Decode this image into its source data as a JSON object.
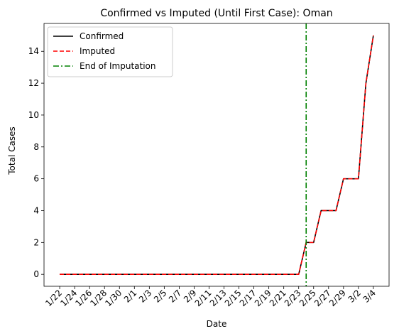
{
  "chart_data": {
    "type": "line",
    "title": "Confirmed vs Imputed (Until First Case): Oman",
    "xlabel": "Date",
    "ylabel": "Total Cases",
    "x": [
      "1/22",
      "1/23",
      "1/24",
      "1/25",
      "1/26",
      "1/27",
      "1/28",
      "1/29",
      "1/30",
      "1/31",
      "2/1",
      "2/2",
      "2/3",
      "2/4",
      "2/5",
      "2/6",
      "2/7",
      "2/8",
      "2/9",
      "2/10",
      "2/11",
      "2/12",
      "2/13",
      "2/14",
      "2/15",
      "2/16",
      "2/17",
      "2/18",
      "2/19",
      "2/20",
      "2/21",
      "2/22",
      "2/23",
      "2/24",
      "2/25",
      "2/26",
      "2/27",
      "2/28",
      "2/29",
      "3/1",
      "3/2",
      "3/3",
      "3/4"
    ],
    "x_tick_labels": [
      "1/22",
      "1/24",
      "1/26",
      "1/28",
      "1/30",
      "2/1",
      "2/3",
      "2/5",
      "2/7",
      "2/9",
      "2/11",
      "2/13",
      "2/15",
      "2/17",
      "2/19",
      "2/21",
      "2/23",
      "2/25",
      "2/27",
      "2/29",
      "3/2",
      "3/4"
    ],
    "ylim": [
      -0.75,
      15.75
    ],
    "y_ticks": [
      0,
      2,
      4,
      6,
      8,
      10,
      12,
      14
    ],
    "series": [
      {
        "name": "Confirmed",
        "color": "#000000",
        "style": "solid",
        "values": [
          0,
          0,
          0,
          0,
          0,
          0,
          0,
          0,
          0,
          0,
          0,
          0,
          0,
          0,
          0,
          0,
          0,
          0,
          0,
          0,
          0,
          0,
          0,
          0,
          0,
          0,
          0,
          0,
          0,
          0,
          0,
          0,
          0,
          2,
          2,
          4,
          4,
          4,
          6,
          6,
          6,
          12,
          15
        ]
      },
      {
        "name": "Imputed",
        "color": "#ff0000",
        "style": "dashed",
        "values": [
          0,
          0,
          0,
          0,
          0,
          0,
          0,
          0,
          0,
          0,
          0,
          0,
          0,
          0,
          0,
          0,
          0,
          0,
          0,
          0,
          0,
          0,
          0,
          0,
          0,
          0,
          0,
          0,
          0,
          0,
          0,
          0,
          0,
          2,
          2,
          4,
          4,
          4,
          6,
          6,
          6,
          12,
          15
        ]
      }
    ],
    "vline": {
      "name": "End of Imputation",
      "x": "2/24",
      "color": "#008000",
      "style": "dashdot"
    },
    "legend": {
      "position": "top-left",
      "entries": [
        "Confirmed",
        "Imputed",
        "End of Imputation"
      ]
    },
    "grid": false
  }
}
